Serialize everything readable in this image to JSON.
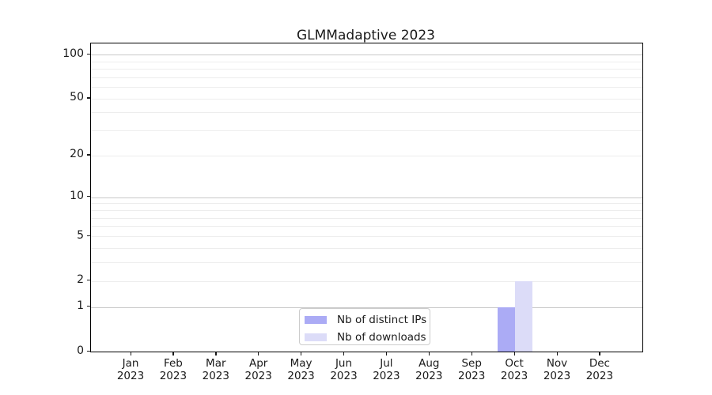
{
  "chart_data": {
    "type": "bar",
    "title": "GLMMadaptive 2023",
    "categories": [
      "Jan",
      "Feb",
      "Mar",
      "Apr",
      "May",
      "Jun",
      "Jul",
      "Aug",
      "Sep",
      "Oct",
      "Nov",
      "Dec"
    ],
    "category_year": "2023",
    "series": [
      {
        "name": "Nb of distinct IPs",
        "color": "#ababf5",
        "values": [
          0,
          0,
          0,
          0,
          0,
          0,
          0,
          0,
          0,
          1,
          0,
          0
        ]
      },
      {
        "name": "Nb of downloads",
        "color": "#dcdcf8",
        "values": [
          0,
          0,
          0,
          0,
          0,
          0,
          0,
          0,
          0,
          2,
          0,
          0
        ]
      }
    ],
    "xlabel": "",
    "ylabel": "",
    "y_ticks": [
      0,
      1,
      2,
      5,
      10,
      20,
      50,
      100
    ],
    "ylim": [
      0,
      119
    ],
    "scale": "log1p",
    "grid": {
      "major_values": [
        1,
        10,
        100
      ],
      "minor_values": [
        2,
        3,
        4,
        5,
        6,
        7,
        8,
        9,
        20,
        30,
        40,
        50,
        60,
        70,
        80,
        90
      ],
      "major_color": "#c8c8c8",
      "minor_color": "#ededed"
    },
    "legend": {
      "position": "lower center",
      "entries": [
        "Nb of distinct IPs",
        "Nb of downloads"
      ]
    }
  }
}
